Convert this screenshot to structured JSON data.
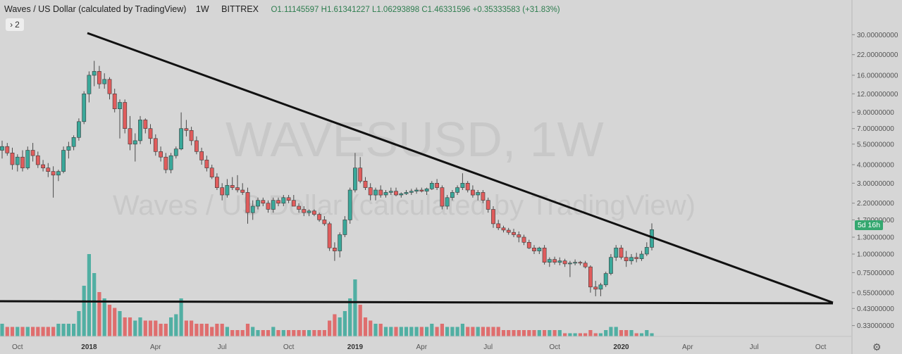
{
  "header": {
    "symbol": "Waves / US Dollar (calculated by TradingView)",
    "timeframe": "1W",
    "exchange": "BITTREX",
    "open_label": "O",
    "open": "1.11145597",
    "high_label": "H",
    "high": "1.61341227",
    "low_label": "L",
    "low": "1.06293898",
    "close_label": "C",
    "close": "1.46331596",
    "change": "+0.35333583 (+31.83%)"
  },
  "indicators_toggle": {
    "icon": "chevron-right-icon",
    "count": "2"
  },
  "watermark": {
    "symbol": "WAVESUSD, 1W",
    "description": "Waves / US Dollar (calculated by TradingView)"
  },
  "countdown": "5d 16h",
  "settings_icon": "gear-icon",
  "colors": {
    "up": "#3aa89a",
    "down": "#e05c5c",
    "background": "#d6d6d6",
    "countdown_bg": "#35a870"
  },
  "chart_data": {
    "type": "candlestick",
    "scale": "log",
    "grid": false,
    "legend": "none",
    "y_ticks": [
      {
        "value": 30.0,
        "label": "30.00000000"
      },
      {
        "value": 22.0,
        "label": "22.00000000"
      },
      {
        "value": 16.0,
        "label": "16.00000000"
      },
      {
        "value": 12.0,
        "label": "12.00000000"
      },
      {
        "value": 9.0,
        "label": "9.00000000"
      },
      {
        "value": 7.0,
        "label": "7.00000000"
      },
      {
        "value": 5.5,
        "label": "5.50000000"
      },
      {
        "value": 4.0,
        "label": "4.00000000"
      },
      {
        "value": 3.0,
        "label": "3.00000000"
      },
      {
        "value": 2.2,
        "label": "2.20000000"
      },
      {
        "value": 1.7,
        "label": "1.70000000"
      },
      {
        "value": 1.3,
        "label": "1.30000000"
      },
      {
        "value": 1.0,
        "label": "1.00000000"
      },
      {
        "value": 0.75,
        "label": "0.75000000"
      },
      {
        "value": 0.55,
        "label": "0.55000000"
      },
      {
        "value": 0.43,
        "label": "0.43000000"
      },
      {
        "value": 0.33,
        "label": "0.33000000"
      }
    ],
    "x_ticks": [
      {
        "week": 3,
        "label": "Oct",
        "bold": false
      },
      {
        "week": 17,
        "label": "2018",
        "bold": true
      },
      {
        "week": 30,
        "label": "Apr",
        "bold": false
      },
      {
        "week": 43,
        "label": "Jul",
        "bold": false
      },
      {
        "week": 56,
        "label": "Oct",
        "bold": false
      },
      {
        "week": 69,
        "label": "2019",
        "bold": true
      },
      {
        "week": 82,
        "label": "Apr",
        "bold": false
      },
      {
        "week": 95,
        "label": "Jul",
        "bold": false
      },
      {
        "week": 108,
        "label": "Oct",
        "bold": false
      },
      {
        "week": 121,
        "label": "2020",
        "bold": true
      },
      {
        "week": 134,
        "label": "Apr",
        "bold": false
      },
      {
        "week": 147,
        "label": "Jul",
        "bold": false
      },
      {
        "week": 160,
        "label": "Oct",
        "bold": false
      }
    ],
    "candles": [
      [
        5.0,
        5.8,
        4.4,
        5.3,
        4
      ],
      [
        5.3,
        5.6,
        4.6,
        4.8,
        3
      ],
      [
        4.8,
        5.2,
        3.7,
        4.0,
        3
      ],
      [
        4.0,
        4.7,
        3.6,
        4.5,
        3
      ],
      [
        4.5,
        5.0,
        3.6,
        3.8,
        3
      ],
      [
        3.8,
        5.3,
        3.7,
        5.0,
        3
      ],
      [
        5.0,
        5.6,
        4.2,
        4.6,
        3
      ],
      [
        4.6,
        4.9,
        3.8,
        4.0,
        3
      ],
      [
        4.0,
        4.3,
        3.6,
        3.8,
        3
      ],
      [
        3.8,
        4.1,
        3.3,
        3.6,
        3
      ],
      [
        3.6,
        3.9,
        2.4,
        3.4,
        3
      ],
      [
        3.4,
        3.7,
        3.1,
        3.6,
        4
      ],
      [
        3.6,
        5.3,
        3.5,
        5.0,
        4
      ],
      [
        5.0,
        5.7,
        4.4,
        5.3,
        4
      ],
      [
        5.3,
        6.3,
        5.0,
        6.1,
        4
      ],
      [
        6.1,
        8.2,
        5.8,
        7.8,
        8
      ],
      [
        7.8,
        12.5,
        7.5,
        12.0,
        16
      ],
      [
        12.0,
        17.0,
        10.5,
        16.0,
        26
      ],
      [
        16.0,
        20.0,
        13.5,
        17.0,
        20
      ],
      [
        17.0,
        18.5,
        13.0,
        14.0,
        14
      ],
      [
        14.0,
        16.5,
        13.0,
        15.0,
        12
      ],
      [
        15.0,
        15.5,
        11.0,
        12.0,
        10
      ],
      [
        12.0,
        13.0,
        9.0,
        9.5,
        9
      ],
      [
        9.5,
        11.0,
        6.0,
        10.5,
        8
      ],
      [
        10.5,
        11.0,
        6.5,
        7.0,
        6
      ],
      [
        7.0,
        8.5,
        5.0,
        5.5,
        6
      ],
      [
        5.5,
        6.5,
        4.2,
        5.8,
        5
      ],
      [
        5.8,
        8.5,
        5.5,
        8.0,
        6
      ],
      [
        8.0,
        8.2,
        6.5,
        7.0,
        5
      ],
      [
        7.0,
        7.5,
        5.5,
        6.0,
        5
      ],
      [
        6.0,
        6.4,
        4.6,
        4.9,
        5
      ],
      [
        4.9,
        5.3,
        4.2,
        4.5,
        4
      ],
      [
        4.5,
        4.8,
        3.5,
        3.7,
        4
      ],
      [
        3.7,
        4.8,
        3.5,
        4.6,
        6
      ],
      [
        4.6,
        5.3,
        4.4,
        5.1,
        7
      ],
      [
        5.1,
        9.0,
        5.0,
        7.0,
        12
      ],
      [
        7.0,
        8.0,
        6.2,
        6.8,
        5
      ],
      [
        6.8,
        7.2,
        5.4,
        5.8,
        5
      ],
      [
        5.8,
        6.2,
        4.7,
        4.9,
        4
      ],
      [
        4.9,
        5.2,
        4.0,
        4.3,
        4
      ],
      [
        4.3,
        4.6,
        3.6,
        3.8,
        4
      ],
      [
        3.8,
        4.0,
        3.2,
        3.3,
        3
      ],
      [
        3.3,
        3.5,
        2.7,
        2.8,
        4
      ],
      [
        2.8,
        3.0,
        2.3,
        2.5,
        4
      ],
      [
        2.5,
        3.2,
        2.4,
        2.9,
        3
      ],
      [
        2.9,
        3.3,
        2.7,
        2.8,
        2
      ],
      [
        2.8,
        3.4,
        2.6,
        2.7,
        2
      ],
      [
        2.7,
        3.0,
        2.5,
        2.6,
        2
      ],
      [
        2.6,
        2.8,
        1.6,
        1.9,
        4
      ],
      [
        1.9,
        2.3,
        1.7,
        2.1,
        3
      ],
      [
        2.1,
        2.4,
        2.0,
        2.3,
        2
      ],
      [
        2.3,
        2.4,
        2.1,
        2.2,
        2
      ],
      [
        2.2,
        2.3,
        1.9,
        2.0,
        2
      ],
      [
        2.0,
        2.4,
        1.9,
        2.3,
        3
      ],
      [
        2.3,
        2.4,
        2.1,
        2.2,
        2
      ],
      [
        2.2,
        2.5,
        2.1,
        2.4,
        2
      ],
      [
        2.4,
        2.5,
        2.2,
        2.3,
        2
      ],
      [
        2.3,
        2.5,
        2.1,
        2.1,
        2
      ],
      [
        2.1,
        2.2,
        1.9,
        2.0,
        2
      ],
      [
        2.0,
        2.1,
        1.8,
        1.9,
        2
      ],
      [
        1.9,
        2.0,
        1.8,
        1.95,
        2
      ],
      [
        1.95,
        2.0,
        1.8,
        1.85,
        2
      ],
      [
        1.85,
        1.9,
        1.65,
        1.7,
        2
      ],
      [
        1.7,
        1.8,
        1.55,
        1.6,
        2
      ],
      [
        1.6,
        1.65,
        1.05,
        1.1,
        5
      ],
      [
        1.1,
        1.2,
        0.9,
        1.05,
        7
      ],
      [
        1.05,
        1.4,
        0.95,
        1.35,
        6
      ],
      [
        1.35,
        1.8,
        1.3,
        1.7,
        8
      ],
      [
        1.7,
        2.8,
        1.6,
        2.7,
        12
      ],
      [
        2.7,
        4.8,
        2.6,
        3.8,
        18
      ],
      [
        3.8,
        4.5,
        3.0,
        3.1,
        10
      ],
      [
        3.1,
        3.3,
        2.7,
        2.8,
        6
      ],
      [
        2.8,
        3.0,
        2.3,
        2.5,
        5
      ],
      [
        2.5,
        2.8,
        2.3,
        2.7,
        4
      ],
      [
        2.7,
        2.9,
        2.4,
        2.5,
        4
      ],
      [
        2.5,
        2.7,
        2.4,
        2.6,
        3
      ],
      [
        2.6,
        2.8,
        2.5,
        2.65,
        3
      ],
      [
        2.65,
        2.8,
        2.45,
        2.5,
        3
      ],
      [
        2.5,
        2.6,
        2.4,
        2.55,
        3
      ],
      [
        2.55,
        2.7,
        2.5,
        2.6,
        3
      ],
      [
        2.6,
        2.75,
        2.5,
        2.65,
        3
      ],
      [
        2.65,
        2.8,
        2.55,
        2.7,
        3
      ],
      [
        2.7,
        2.8,
        2.6,
        2.65,
        3
      ],
      [
        2.65,
        2.8,
        2.5,
        2.75,
        3
      ],
      [
        2.75,
        3.1,
        2.7,
        3.0,
        4
      ],
      [
        3.0,
        3.2,
        2.7,
        2.8,
        3
      ],
      [
        2.8,
        2.9,
        2.0,
        2.1,
        4
      ],
      [
        2.1,
        2.5,
        2.0,
        2.4,
        3
      ],
      [
        2.4,
        2.7,
        2.3,
        2.6,
        3
      ],
      [
        2.6,
        2.9,
        2.5,
        2.8,
        3
      ],
      [
        2.8,
        3.5,
        2.7,
        3.0,
        4
      ],
      [
        3.0,
        3.1,
        2.6,
        2.7,
        3
      ],
      [
        2.7,
        2.9,
        2.4,
        2.5,
        3
      ],
      [
        2.5,
        2.7,
        2.3,
        2.6,
        3
      ],
      [
        2.6,
        2.7,
        2.2,
        2.3,
        3
      ],
      [
        2.3,
        2.4,
        1.9,
        2.0,
        3
      ],
      [
        2.0,
        2.1,
        1.5,
        1.6,
        3
      ],
      [
        1.6,
        1.7,
        1.45,
        1.5,
        3
      ],
      [
        1.5,
        1.55,
        1.4,
        1.45,
        2
      ],
      [
        1.45,
        1.5,
        1.35,
        1.4,
        2
      ],
      [
        1.4,
        1.48,
        1.3,
        1.35,
        2
      ],
      [
        1.35,
        1.42,
        1.2,
        1.3,
        2
      ],
      [
        1.3,
        1.35,
        1.15,
        1.2,
        2
      ],
      [
        1.2,
        1.25,
        1.08,
        1.1,
        2
      ],
      [
        1.1,
        1.15,
        1.0,
        1.05,
        2
      ],
      [
        1.05,
        1.12,
        1.0,
        1.1,
        2
      ],
      [
        1.1,
        1.15,
        0.85,
        0.88,
        2
      ],
      [
        0.88,
        0.95,
        0.82,
        0.92,
        2
      ],
      [
        0.92,
        0.96,
        0.85,
        0.88,
        2
      ],
      [
        0.88,
        0.95,
        0.84,
        0.9,
        2
      ],
      [
        0.9,
        0.93,
        0.82,
        0.86,
        1
      ],
      [
        0.86,
        0.9,
        0.7,
        0.87,
        1
      ],
      [
        0.87,
        0.92,
        0.84,
        0.88,
        1
      ],
      [
        0.88,
        0.9,
        0.84,
        0.87,
        1
      ],
      [
        0.87,
        0.9,
        0.8,
        0.82,
        1
      ],
      [
        0.82,
        0.84,
        0.55,
        0.6,
        2
      ],
      [
        0.6,
        0.66,
        0.52,
        0.58,
        1
      ],
      [
        0.58,
        0.64,
        0.52,
        0.62,
        1
      ],
      [
        0.62,
        0.76,
        0.6,
        0.74,
        2
      ],
      [
        0.74,
        1.0,
        0.72,
        0.95,
        3
      ],
      [
        0.95,
        1.15,
        0.9,
        1.1,
        3
      ],
      [
        1.1,
        1.15,
        0.92,
        0.95,
        2
      ],
      [
        0.95,
        1.05,
        0.82,
        0.9,
        2
      ],
      [
        0.9,
        1.0,
        0.85,
        0.95,
        2
      ],
      [
        0.95,
        1.02,
        0.88,
        0.93,
        1
      ],
      [
        0.93,
        1.05,
        0.9,
        1.0,
        1
      ],
      [
        1.0,
        1.2,
        0.97,
        1.11,
        2
      ],
      [
        1.11,
        1.61,
        1.06,
        1.46,
        1
      ]
    ]
  }
}
